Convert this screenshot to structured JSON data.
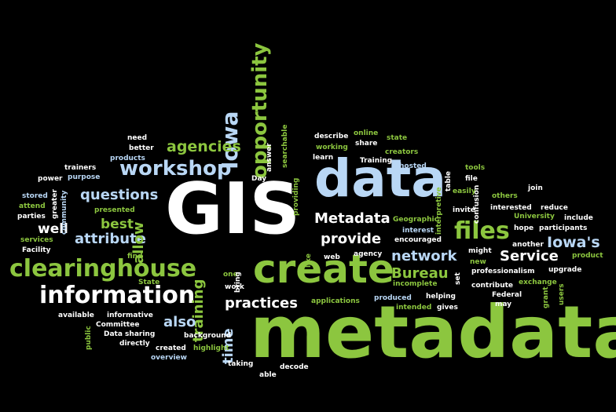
{
  "palette": {
    "green": "#8cc63f",
    "blue": "#b9d7f5",
    "white": "#ffffff",
    "background": "#000000"
  },
  "words": [
    {
      "text": "metadata",
      "color": "green",
      "weight": 72
    },
    {
      "text": "GIS",
      "color": "white",
      "weight": 70
    },
    {
      "text": "data",
      "color": "blue",
      "weight": 54
    },
    {
      "text": "create",
      "color": "green",
      "weight": 44
    },
    {
      "text": "clearinghouse",
      "color": "green",
      "weight": 24
    },
    {
      "text": "information",
      "color": "white",
      "weight": 24
    },
    {
      "text": "workshop",
      "color": "blue",
      "weight": 22
    },
    {
      "text": "opportunity",
      "color": "green",
      "weight": 22
    },
    {
      "text": "Iowa",
      "color": "blue",
      "weight": 22
    },
    {
      "text": "files",
      "color": "green",
      "weight": 22
    },
    {
      "text": "Metadata",
      "color": "white",
      "weight": 16
    },
    {
      "text": "provide",
      "color": "white",
      "weight": 16
    },
    {
      "text": "network",
      "color": "blue",
      "weight": 16
    },
    {
      "text": "agencies",
      "color": "green",
      "weight": 16
    },
    {
      "text": "questions",
      "color": "blue",
      "weight": 16
    },
    {
      "text": "attribute",
      "color": "blue",
      "weight": 16
    },
    {
      "text": "practices",
      "color": "white",
      "weight": 16
    },
    {
      "text": "Service",
      "color": "white",
      "weight": 16
    },
    {
      "text": "Bureau",
      "color": "green",
      "weight": 16
    },
    {
      "text": "Iowa's",
      "color": "blue",
      "weight": 16
    },
    {
      "text": "training",
      "color": "green",
      "weight": 16
    },
    {
      "text": "time",
      "color": "blue",
      "weight": 16
    },
    {
      "text": "allow",
      "color": "green",
      "weight": 16
    },
    {
      "text": "also",
      "color": "blue",
      "weight": 16
    },
    {
      "text": "best",
      "color": "green",
      "weight": 14
    },
    {
      "text": "well",
      "color": "white",
      "weight": 14
    },
    {
      "text": "need",
      "color": "white",
      "weight": 8
    },
    {
      "text": "better",
      "color": "white",
      "weight": 8
    },
    {
      "text": "products",
      "color": "blue",
      "weight": 8
    },
    {
      "text": "trainers",
      "color": "white",
      "weight": 8
    },
    {
      "text": "power",
      "color": "white",
      "weight": 8
    },
    {
      "text": "purpose",
      "color": "blue",
      "weight": 8
    },
    {
      "text": "stored",
      "color": "blue",
      "weight": 8
    },
    {
      "text": "attend",
      "color": "green",
      "weight": 8
    },
    {
      "text": "parties",
      "color": "white",
      "weight": 8
    },
    {
      "text": "greater",
      "color": "white",
      "weight": 8
    },
    {
      "text": "community",
      "color": "blue",
      "weight": 8
    },
    {
      "text": "services",
      "color": "green",
      "weight": 8
    },
    {
      "text": "Facility",
      "color": "white",
      "weight": 8
    },
    {
      "text": "presented",
      "color": "green",
      "weight": 8
    },
    {
      "text": "find",
      "color": "green",
      "weight": 8
    },
    {
      "text": "State",
      "color": "green",
      "weight": 8
    },
    {
      "text": "available",
      "color": "white",
      "weight": 8
    },
    {
      "text": "informative",
      "color": "white",
      "weight": 8
    },
    {
      "text": "Committee",
      "color": "white",
      "weight": 8
    },
    {
      "text": "Data sharing",
      "color": "white",
      "weight": 8
    },
    {
      "text": "public",
      "color": "green",
      "weight": 8
    },
    {
      "text": "directly",
      "color": "white",
      "weight": 8
    },
    {
      "text": "created",
      "color": "white",
      "weight": 8
    },
    {
      "text": "background",
      "color": "white",
      "weight": 8
    },
    {
      "text": "highlight",
      "color": "green",
      "weight": 8
    },
    {
      "text": "overview",
      "color": "blue",
      "weight": 8
    },
    {
      "text": "taking",
      "color": "white",
      "weight": 8
    },
    {
      "text": "able",
      "color": "white",
      "weight": 8
    },
    {
      "text": "decode",
      "color": "white",
      "weight": 8
    },
    {
      "text": "answer",
      "color": "white",
      "weight": 8
    },
    {
      "text": "searchable",
      "color": "green",
      "weight": 8
    },
    {
      "text": "Day",
      "color": "white",
      "weight": 8
    },
    {
      "text": "providing",
      "color": "green",
      "weight": 8
    },
    {
      "text": "describe",
      "color": "white",
      "weight": 8
    },
    {
      "text": "working",
      "color": "green",
      "weight": 8
    },
    {
      "text": "learn",
      "color": "white",
      "weight": 8
    },
    {
      "text": "online",
      "color": "green",
      "weight": 8
    },
    {
      "text": "share",
      "color": "white",
      "weight": 8
    },
    {
      "text": "state",
      "color": "green",
      "weight": 8
    },
    {
      "text": "creators",
      "color": "green",
      "weight": 8
    },
    {
      "text": "Training",
      "color": "white",
      "weight": 8
    },
    {
      "text": "hosted",
      "color": "blue",
      "weight": 8
    },
    {
      "text": "interpretive",
      "color": "green",
      "weight": 8
    },
    {
      "text": "table",
      "color": "white",
      "weight": 8
    },
    {
      "text": "tools",
      "color": "green",
      "weight": 8
    },
    {
      "text": "file",
      "color": "white",
      "weight": 8
    },
    {
      "text": "easily",
      "color": "green",
      "weight": 8
    },
    {
      "text": "confusion",
      "color": "white",
      "weight": 8
    },
    {
      "text": "others",
      "color": "green",
      "weight": 8
    },
    {
      "text": "join",
      "color": "white",
      "weight": 8
    },
    {
      "text": "invite",
      "color": "white",
      "weight": 8
    },
    {
      "text": "interested",
      "color": "white",
      "weight": 8
    },
    {
      "text": "reduce",
      "color": "white",
      "weight": 8
    },
    {
      "text": "University",
      "color": "green",
      "weight": 8
    },
    {
      "text": "include",
      "color": "white",
      "weight": 8
    },
    {
      "text": "hope",
      "color": "white",
      "weight": 8
    },
    {
      "text": "participants",
      "color": "white",
      "weight": 8
    },
    {
      "text": "Geographic",
      "color": "green",
      "weight": 8
    },
    {
      "text": "interest",
      "color": "blue",
      "weight": 8
    },
    {
      "text": "encouraged",
      "color": "white",
      "weight": 8
    },
    {
      "text": "another",
      "color": "white",
      "weight": 8
    },
    {
      "text": "product",
      "color": "green",
      "weight": 8
    },
    {
      "text": "like",
      "color": "green",
      "weight": 8
    },
    {
      "text": "web",
      "color": "white",
      "weight": 8
    },
    {
      "text": "agency",
      "color": "white",
      "weight": 8
    },
    {
      "text": "might",
      "color": "white",
      "weight": 8
    },
    {
      "text": "new",
      "color": "green",
      "weight": 8
    },
    {
      "text": "set",
      "color": "white",
      "weight": 8
    },
    {
      "text": "professionalism",
      "color": "white",
      "weight": 8
    },
    {
      "text": "upgrade",
      "color": "white",
      "weight": 8
    },
    {
      "text": "one",
      "color": "green",
      "weight": 8
    },
    {
      "text": "work",
      "color": "white",
      "weight": 8
    },
    {
      "text": "bring",
      "color": "white",
      "weight": 8
    },
    {
      "text": "incomplete",
      "color": "green",
      "weight": 8
    },
    {
      "text": "contribute",
      "color": "white",
      "weight": 8
    },
    {
      "text": "exchange",
      "color": "green",
      "weight": 8
    },
    {
      "text": "produced",
      "color": "blue",
      "weight": 8
    },
    {
      "text": "helping",
      "color": "white",
      "weight": 8
    },
    {
      "text": "Federal",
      "color": "white",
      "weight": 8
    },
    {
      "text": "grant",
      "color": "green",
      "weight": 8
    },
    {
      "text": "users",
      "color": "green",
      "weight": 8
    },
    {
      "text": "applications",
      "color": "green",
      "weight": 8
    },
    {
      "text": "intended",
      "color": "green",
      "weight": 8
    },
    {
      "text": "gives",
      "color": "white",
      "weight": 8
    },
    {
      "text": "may",
      "color": "white",
      "weight": 8
    }
  ]
}
